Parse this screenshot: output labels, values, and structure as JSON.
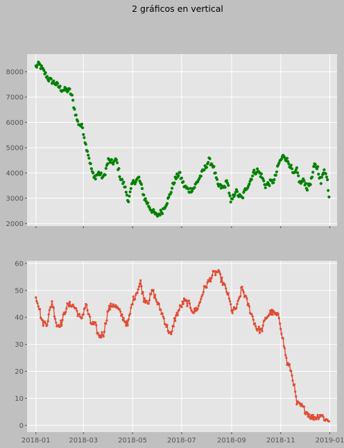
{
  "figure": {
    "title": "2 gráficos en vertical",
    "background": "#c0c0c0",
    "axes_background": "#e5e5e5",
    "grid": true
  },
  "chart_data": [
    {
      "type": "scatter",
      "color": "#008000",
      "xlim": [
        "2017-12-21",
        "2019-01-10"
      ],
      "ylim": [
        1900,
        8700
      ],
      "yticks": [
        2000,
        3000,
        4000,
        5000,
        6000,
        7000,
        8000
      ],
      "xticks": [
        "2018-01",
        "2018-03",
        "2018-05",
        "2018-07",
        "2018-09",
        "2018-11",
        "2019-01"
      ],
      "show_xtick_labels": false,
      "x_start": "2018-01-01",
      "x_step_days": 1,
      "knots": [
        [
          0,
          8200
        ],
        [
          4,
          8300
        ],
        [
          10,
          8000
        ],
        [
          16,
          7700
        ],
        [
          24,
          7550
        ],
        [
          32,
          7300
        ],
        [
          42,
          7250
        ],
        [
          45,
          7000
        ],
        [
          48,
          6500
        ],
        [
          52,
          6000
        ],
        [
          58,
          5800
        ],
        [
          62,
          5100
        ],
        [
          64,
          4900
        ],
        [
          68,
          4300
        ],
        [
          72,
          3800
        ],
        [
          78,
          4000
        ],
        [
          84,
          3800
        ],
        [
          90,
          4500
        ],
        [
          95,
          4400
        ],
        [
          100,
          4500
        ],
        [
          105,
          3800
        ],
        [
          110,
          3500
        ],
        [
          115,
          2900
        ],
        [
          120,
          3600
        ],
        [
          128,
          3800
        ],
        [
          135,
          3000
        ],
        [
          142,
          2600
        ],
        [
          150,
          2300
        ],
        [
          157,
          2500
        ],
        [
          165,
          3000
        ],
        [
          172,
          3700
        ],
        [
          178,
          4000
        ],
        [
          184,
          3500
        ],
        [
          190,
          3300
        ],
        [
          196,
          3400
        ],
        [
          203,
          3800
        ],
        [
          210,
          4200
        ],
        [
          215,
          4500
        ],
        [
          220,
          4300
        ],
        [
          226,
          3500
        ],
        [
          233,
          3400
        ],
        [
          238,
          3700
        ],
        [
          242,
          2800
        ],
        [
          248,
          3300
        ],
        [
          252,
          3100
        ],
        [
          256,
          3000
        ],
        [
          261,
          3400
        ],
        [
          265,
          3600
        ],
        [
          270,
          4000
        ],
        [
          275,
          4100
        ],
        [
          280,
          3900
        ],
        [
          285,
          3500
        ],
        [
          290,
          3600
        ],
        [
          296,
          3700
        ],
        [
          302,
          4400
        ],
        [
          308,
          4700
        ],
        [
          312,
          4500
        ],
        [
          316,
          4300
        ],
        [
          320,
          3900
        ],
        [
          324,
          4100
        ],
        [
          328,
          3600
        ],
        [
          333,
          3700
        ],
        [
          337,
          3400
        ],
        [
          342,
          3700
        ],
        [
          346,
          4300
        ],
        [
          350,
          4200
        ],
        [
          354,
          3600
        ],
        [
          358,
          4200
        ],
        [
          362,
          3700
        ],
        [
          364,
          3100
        ]
      ],
      "noise": 110
    },
    {
      "type": "line",
      "color": "#e24a33",
      "marker": "circle",
      "xlim": [
        "2017-12-21",
        "2019-01-10"
      ],
      "ylim": [
        -2.5,
        61
      ],
      "yticks": [
        0,
        10,
        20,
        30,
        40,
        50,
        60
      ],
      "xticks": [
        "2018-01",
        "2018-03",
        "2018-05",
        "2018-07",
        "2018-09",
        "2018-11",
        "2019-01"
      ],
      "x_start": "2018-01-01",
      "x_step_days": 1,
      "knots": [
        [
          0,
          48
        ],
        [
          3,
          45
        ],
        [
          8,
          38
        ],
        [
          14,
          38
        ],
        [
          20,
          46
        ],
        [
          26,
          37
        ],
        [
          32,
          38
        ],
        [
          38,
          44
        ],
        [
          44,
          45
        ],
        [
          50,
          43
        ],
        [
          56,
          39
        ],
        [
          62,
          45
        ],
        [
          68,
          38
        ],
        [
          74,
          37
        ],
        [
          78,
          33
        ],
        [
          84,
          34
        ],
        [
          90,
          43
        ],
        [
          96,
          45
        ],
        [
          102,
          43
        ],
        [
          108,
          40
        ],
        [
          114,
          37
        ],
        [
          120,
          46
        ],
        [
          126,
          50
        ],
        [
          130,
          53
        ],
        [
          134,
          47
        ],
        [
          140,
          46
        ],
        [
          145,
          50
        ],
        [
          150,
          46
        ],
        [
          156,
          42
        ],
        [
          162,
          37
        ],
        [
          168,
          33
        ],
        [
          172,
          39
        ],
        [
          178,
          43
        ],
        [
          184,
          46
        ],
        [
          190,
          45
        ],
        [
          196,
          42
        ],
        [
          202,
          44
        ],
        [
          208,
          50
        ],
        [
          214,
          53
        ],
        [
          220,
          56
        ],
        [
          226,
          57
        ],
        [
          232,
          53
        ],
        [
          238,
          49
        ],
        [
          244,
          42
        ],
        [
          250,
          44
        ],
        [
          256,
          51
        ],
        [
          262,
          46
        ],
        [
          268,
          41
        ],
        [
          274,
          36
        ],
        [
          280,
          35
        ],
        [
          286,
          40
        ],
        [
          292,
          42
        ],
        [
          298,
          41
        ],
        [
          302,
          40
        ],
        [
          305,
          35
        ],
        [
          309,
          28
        ],
        [
          312,
          23
        ],
        [
          316,
          21
        ],
        [
          320,
          16
        ],
        [
          324,
          8
        ],
        [
          330,
          7
        ],
        [
          336,
          5
        ],
        [
          342,
          3
        ],
        [
          348,
          3
        ],
        [
          354,
          4
        ],
        [
          360,
          2
        ],
        [
          364,
          2
        ]
      ],
      "noise": 1.2
    }
  ]
}
